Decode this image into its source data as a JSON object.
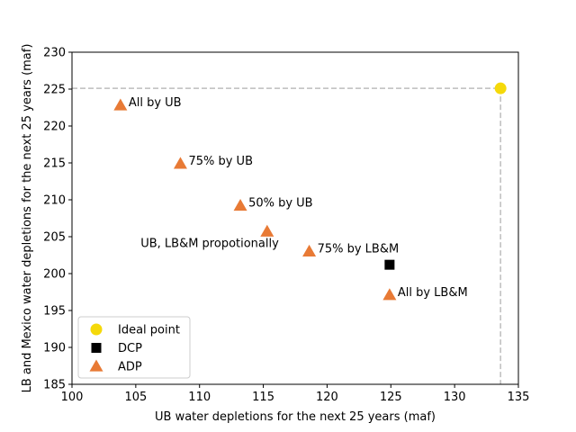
{
  "chart_data": {
    "type": "scatter",
    "title": "",
    "xlabel": "UB water depletions for the next 25 years (maf)",
    "ylabel": "LB and Mexico water depletions for the next 25 years (maf)",
    "xlim": [
      100,
      135
    ],
    "ylim": [
      185,
      230
    ],
    "xticks": [
      "100",
      "105",
      "110",
      "115",
      "120",
      "125",
      "130",
      "135"
    ],
    "yticks": [
      "185",
      "190",
      "195",
      "200",
      "205",
      "210",
      "215",
      "220",
      "225",
      "230"
    ],
    "grid": false,
    "legend_position": "lower-left",
    "reference_lines": {
      "x": 133.6,
      "y": 225.1,
      "color": "#bdbdbd",
      "style": "dashed"
    },
    "series": [
      {
        "name": "Ideal point",
        "marker": "circle",
        "color": "#f5d90a",
        "points": [
          {
            "x": 133.6,
            "y": 225.1
          }
        ]
      },
      {
        "name": "DCP",
        "marker": "square",
        "color": "#000000",
        "points": [
          {
            "x": 124.9,
            "y": 201.2
          }
        ]
      },
      {
        "name": "ADP",
        "marker": "triangle",
        "color": "#e87a35",
        "points": [
          {
            "x": 103.8,
            "y": 222.8,
            "label": "All by UB"
          },
          {
            "x": 108.5,
            "y": 214.9,
            "label": "75% by UB"
          },
          {
            "x": 113.2,
            "y": 209.2,
            "label": "50% by UB"
          },
          {
            "x": 115.3,
            "y": 205.7,
            "label": "UB, LB&M propotionally"
          },
          {
            "x": 118.6,
            "y": 203.0,
            "label": "75% by LB&M"
          },
          {
            "x": 124.9,
            "y": 197.1,
            "label": "All by LB&M"
          }
        ]
      }
    ]
  }
}
